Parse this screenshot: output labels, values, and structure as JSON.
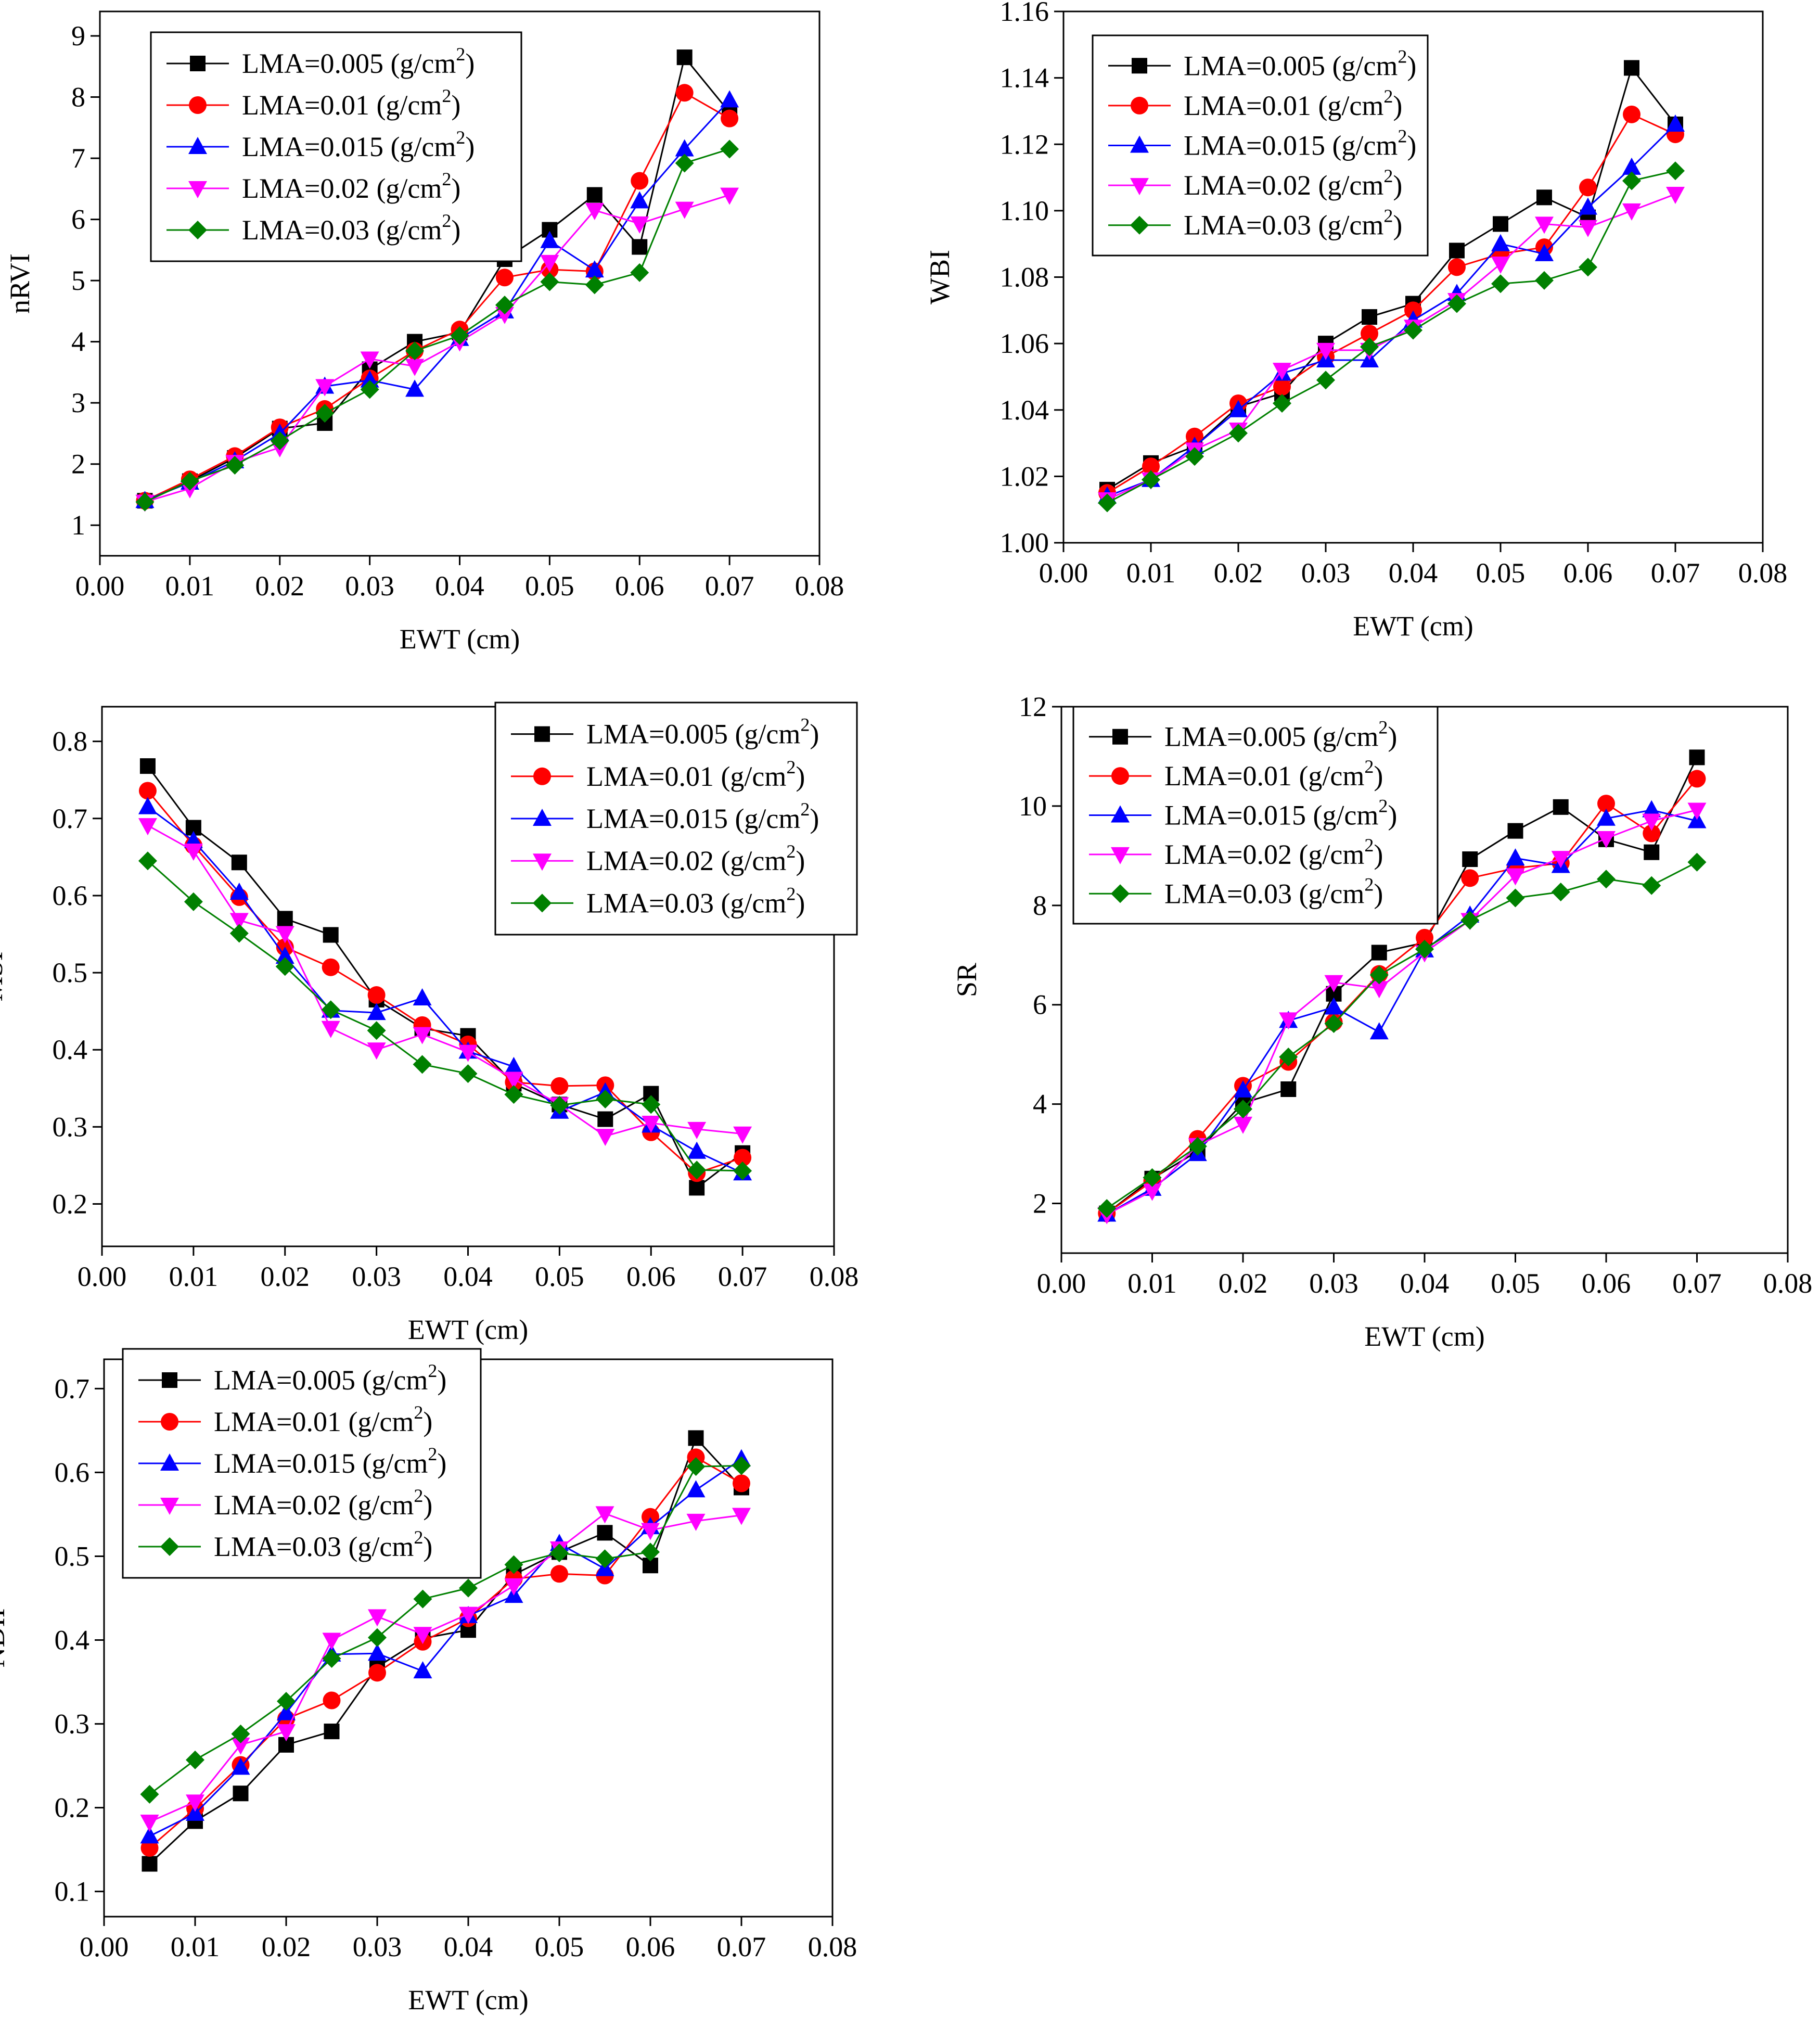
{
  "figure": {
    "legend_items": [
      {
        "prefix": "LMA=0.005 (g/cm",
        "sup": "2",
        "suffix": ")",
        "color": "#000000",
        "marker": "square"
      },
      {
        "prefix": "LMA=0.01 (g/cm",
        "sup": "2",
        "suffix": ")",
        "color": "#ff0000",
        "marker": "circle"
      },
      {
        "prefix": "LMA=0.015 (g/cm",
        "sup": "2",
        "suffix": ")",
        "color": "#0000ff",
        "marker": "triangle-up"
      },
      {
        "prefix": "LMA=0.02 (g/cm",
        "sup": "2",
        "suffix": ")",
        "color": "#ff00ff",
        "marker": "triangle-down"
      },
      {
        "prefix": "LMA=0.03 (g/cm",
        "sup": "2",
        "suffix": ")",
        "color": "#008000",
        "marker": "diamond"
      }
    ]
  },
  "chart_data": [
    {
      "id": "nrvi",
      "type": "line",
      "title": "",
      "xlabel": "EWT (cm)",
      "ylabel": "nRVI",
      "xlim": [
        0,
        0.08
      ],
      "ylim": [
        0.5,
        9.4
      ],
      "xticks": [
        "0.00",
        "0.01",
        "0.02",
        "0.03",
        "0.04",
        "0.05",
        "0.06",
        "0.07",
        "0.08"
      ],
      "xtick_values": [
        0,
        0.01,
        0.02,
        0.03,
        0.04,
        0.05,
        0.06,
        0.07,
        0.08
      ],
      "yticks": [
        "1",
        "2",
        "3",
        "4",
        "5",
        "6",
        "7",
        "8",
        "9"
      ],
      "ytick_values": [
        1,
        2,
        3,
        4,
        5,
        6,
        7,
        8,
        9
      ],
      "legend_position": "top-left",
      "x": [
        0.005,
        0.01,
        0.015,
        0.02,
        0.025,
        0.03,
        0.035,
        0.04,
        0.045,
        0.05,
        0.055,
        0.06,
        0.065,
        0.07
      ],
      "series": [
        {
          "name": "LMA=0.005 (g/cm2)",
          "values": [
            1.4,
            1.72,
            2.1,
            2.58,
            2.67,
            3.55,
            4.0,
            4.15,
            5.35,
            5.83,
            6.4,
            5.55,
            8.65,
            7.75
          ]
        },
        {
          "name": "LMA=0.01 (g/cm2)",
          "values": [
            1.4,
            1.75,
            2.13,
            2.6,
            2.9,
            3.4,
            3.85,
            4.2,
            5.05,
            5.18,
            5.15,
            6.63,
            8.07,
            7.65
          ]
        },
        {
          "name": "LMA=0.015 (g/cm2)",
          "values": [
            1.4,
            1.7,
            2.05,
            2.5,
            3.27,
            3.37,
            3.22,
            4.05,
            4.5,
            5.65,
            5.17,
            6.3,
            7.15,
            7.95
          ]
        },
        {
          "name": "LMA=0.02 (g/cm2)",
          "values": [
            1.38,
            1.6,
            2.03,
            2.27,
            3.27,
            3.72,
            3.6,
            4.0,
            4.45,
            5.3,
            6.15,
            5.93,
            6.17,
            6.4
          ]
        },
        {
          "name": "LMA=0.03 (g/cm2)",
          "values": [
            1.38,
            1.72,
            1.98,
            2.38,
            2.83,
            3.22,
            3.85,
            4.1,
            4.6,
            4.98,
            4.93,
            5.13,
            6.92,
            7.15
          ]
        }
      ]
    },
    {
      "id": "wbi",
      "type": "line",
      "title": "",
      "xlabel": "EWT (cm)",
      "ylabel": "WBI",
      "xlim": [
        0,
        0.08
      ],
      "ylim": [
        1.0,
        1.16
      ],
      "xticks": [
        "0.00",
        "0.01",
        "0.02",
        "0.03",
        "0.04",
        "0.05",
        "0.06",
        "0.07",
        "0.08"
      ],
      "xtick_values": [
        0,
        0.01,
        0.02,
        0.03,
        0.04,
        0.05,
        0.06,
        0.07,
        0.08
      ],
      "yticks": [
        "1.00",
        "1.02",
        "1.04",
        "1.06",
        "1.08",
        "1.10",
        "1.12",
        "1.14",
        "1.16"
      ],
      "ytick_values": [
        1.0,
        1.02,
        1.04,
        1.06,
        1.08,
        1.1,
        1.12,
        1.14,
        1.16
      ],
      "legend_position": "top-left",
      "x": [
        0.005,
        0.01,
        0.015,
        0.02,
        0.025,
        0.03,
        0.035,
        0.04,
        0.045,
        0.05,
        0.055,
        0.06,
        0.065,
        0.07
      ],
      "series": [
        {
          "name": "LMA=0.005 (g/cm2)",
          "values": [
            1.016,
            1.024,
            1.029,
            1.041,
            1.045,
            1.06,
            1.068,
            1.072,
            1.088,
            1.096,
            1.104,
            1.098,
            1.143,
            1.126
          ]
        },
        {
          "name": "LMA=0.01 (g/cm2)",
          "values": [
            1.015,
            1.023,
            1.032,
            1.042,
            1.047,
            1.056,
            1.063,
            1.07,
            1.083,
            1.087,
            1.089,
            1.107,
            1.129,
            1.123
          ]
        },
        {
          "name": "LMA=0.015 (g/cm2)",
          "values": [
            1.014,
            1.019,
            1.029,
            1.04,
            1.051,
            1.055,
            1.055,
            1.067,
            1.075,
            1.09,
            1.087,
            1.101,
            1.113,
            1.126
          ]
        },
        {
          "name": "LMA=0.02 (g/cm2)",
          "values": [
            1.013,
            1.019,
            1.028,
            1.034,
            1.052,
            1.058,
            1.058,
            1.065,
            1.073,
            1.084,
            1.096,
            1.095,
            1.1,
            1.105
          ]
        },
        {
          "name": "LMA=0.03 (g/cm2)",
          "values": [
            1.012,
            1.019,
            1.026,
            1.033,
            1.042,
            1.049,
            1.059,
            1.064,
            1.072,
            1.078,
            1.079,
            1.083,
            1.109,
            1.112
          ]
        }
      ]
    },
    {
      "id": "msi",
      "type": "line",
      "title": "",
      "xlabel": "EWT (cm)",
      "ylabel": "MSI",
      "xlim": [
        0,
        0.08
      ],
      "ylim": [
        0.145,
        0.845
      ],
      "xticks": [
        "0.00",
        "0.01",
        "0.02",
        "0.03",
        "0.04",
        "0.05",
        "0.06",
        "0.07",
        "0.08"
      ],
      "xtick_values": [
        0,
        0.01,
        0.02,
        0.03,
        0.04,
        0.05,
        0.06,
        0.07,
        0.08
      ],
      "yticks": [
        "0.2",
        "0.3",
        "0.4",
        "0.5",
        "0.6",
        "0.7",
        "0.8"
      ],
      "ytick_values": [
        0.2,
        0.3,
        0.4,
        0.5,
        0.6,
        0.7,
        0.8
      ],
      "legend_position": "top-right",
      "x": [
        0.005,
        0.01,
        0.015,
        0.02,
        0.025,
        0.03,
        0.035,
        0.04,
        0.045,
        0.05,
        0.055,
        0.06,
        0.065,
        0.07
      ],
      "series": [
        {
          "name": "LMA=0.005 (g/cm2)",
          "values": [
            0.768,
            0.688,
            0.643,
            0.57,
            0.549,
            0.465,
            0.428,
            0.418,
            0.356,
            0.329,
            0.31,
            0.343,
            0.221,
            0.266
          ]
        },
        {
          "name": "LMA=0.01 (g/cm2)",
          "values": [
            0.736,
            0.665,
            0.598,
            0.533,
            0.507,
            0.471,
            0.432,
            0.407,
            0.358,
            0.353,
            0.354,
            0.293,
            0.24,
            0.26
          ]
        },
        {
          "name": "LMA=0.015 (g/cm2)",
          "values": [
            0.715,
            0.671,
            0.604,
            0.521,
            0.451,
            0.448,
            0.467,
            0.398,
            0.378,
            0.32,
            0.345,
            0.302,
            0.268,
            0.24
          ]
        },
        {
          "name": "LMA=0.02 (g/cm2)",
          "values": [
            0.691,
            0.658,
            0.568,
            0.551,
            0.428,
            0.4,
            0.42,
            0.397,
            0.362,
            0.329,
            0.288,
            0.305,
            0.297,
            0.291
          ]
        },
        {
          "name": "LMA=0.03 (g/cm2)",
          "values": [
            0.645,
            0.592,
            0.551,
            0.508,
            0.452,
            0.425,
            0.381,
            0.369,
            0.342,
            0.328,
            0.336,
            0.329,
            0.244,
            0.243
          ]
        }
      ]
    },
    {
      "id": "sr",
      "type": "line",
      "title": "",
      "xlabel": "EWT (cm)",
      "ylabel": "SR",
      "xlim": [
        0,
        0.08
      ],
      "ylim": [
        1.0,
        12.0
      ],
      "xticks": [
        "0.00",
        "0.01",
        "0.02",
        "0.03",
        "0.04",
        "0.05",
        "0.06",
        "0.07",
        "0.08"
      ],
      "xtick_values": [
        0,
        0.01,
        0.02,
        0.03,
        0.04,
        0.05,
        0.06,
        0.07,
        0.08
      ],
      "yticks": [
        "2",
        "4",
        "6",
        "8",
        "10",
        "12"
      ],
      "ytick_values": [
        2,
        4,
        6,
        8,
        10,
        12
      ],
      "legend_position": "top-left",
      "x": [
        0.005,
        0.01,
        0.015,
        0.02,
        0.025,
        0.03,
        0.035,
        0.04,
        0.045,
        0.05,
        0.055,
        0.06,
        0.065,
        0.07
      ],
      "series": [
        {
          "name": "LMA=0.005 (g/cm2)",
          "values": [
            1.8,
            2.5,
            3.05,
            4.02,
            4.3,
            6.22,
            7.05,
            7.25,
            8.93,
            9.5,
            9.98,
            9.33,
            9.07,
            10.98
          ]
        },
        {
          "name": "LMA=0.01 (g/cm2)",
          "values": [
            1.8,
            2.45,
            3.3,
            4.37,
            4.85,
            5.65,
            6.62,
            7.35,
            8.55,
            8.75,
            8.85,
            10.05,
            9.45,
            10.55
          ]
        },
        {
          "name": "LMA=0.015 (g/cm2)",
          "values": [
            1.78,
            2.3,
            3.0,
            4.28,
            5.68,
            5.95,
            5.45,
            7.1,
            7.8,
            8.95,
            8.8,
            9.75,
            9.92,
            9.7
          ]
        },
        {
          "name": "LMA=0.02 (g/cm2)",
          "values": [
            1.78,
            2.25,
            3.17,
            3.6,
            5.7,
            6.45,
            6.33,
            7.05,
            7.7,
            8.6,
            8.95,
            9.35,
            9.7,
            9.92
          ]
        },
        {
          "name": "LMA=0.03 (g/cm2)",
          "values": [
            1.9,
            2.52,
            3.15,
            3.9,
            4.95,
            5.62,
            6.6,
            7.12,
            7.7,
            8.15,
            8.27,
            8.53,
            8.4,
            8.87
          ]
        }
      ]
    },
    {
      "id": "ndii",
      "type": "line",
      "title": "",
      "xlabel": "EWT (cm)",
      "ylabel": "NDII",
      "xlim": [
        0,
        0.08
      ],
      "ylim": [
        0.07,
        0.735
      ],
      "xticks": [
        "0.00",
        "0.01",
        "0.02",
        "0.03",
        "0.04",
        "0.05",
        "0.06",
        "0.07",
        "0.08"
      ],
      "xtick_values": [
        0,
        0.01,
        0.02,
        0.03,
        0.04,
        0.05,
        0.06,
        0.07,
        0.08
      ],
      "yticks": [
        "0.1",
        "0.2",
        "0.3",
        "0.4",
        "0.5",
        "0.6",
        "0.7"
      ],
      "ytick_values": [
        0.1,
        0.2,
        0.3,
        0.4,
        0.5,
        0.6,
        0.7
      ],
      "legend_position": "top-left",
      "x": [
        0.005,
        0.01,
        0.015,
        0.02,
        0.025,
        0.03,
        0.035,
        0.04,
        0.045,
        0.05,
        0.055,
        0.06,
        0.065,
        0.07
      ],
      "series": [
        {
          "name": "LMA=0.005 (g/cm2)",
          "values": [
            0.133,
            0.184,
            0.217,
            0.275,
            0.291,
            0.368,
            0.402,
            0.412,
            0.478,
            0.505,
            0.528,
            0.489,
            0.641,
            0.582
          ]
        },
        {
          "name": "LMA=0.01 (g/cm2)",
          "values": [
            0.152,
            0.199,
            0.251,
            0.306,
            0.328,
            0.361,
            0.398,
            0.426,
            0.473,
            0.479,
            0.477,
            0.547,
            0.618,
            0.587
          ]
        },
        {
          "name": "LMA=0.015 (g/cm2)",
          "values": [
            0.166,
            0.193,
            0.248,
            0.313,
            0.383,
            0.384,
            0.363,
            0.429,
            0.453,
            0.515,
            0.485,
            0.535,
            0.579,
            0.616
          ]
        },
        {
          "name": "LMA=0.02 (g/cm2)",
          "values": [
            0.183,
            0.207,
            0.275,
            0.291,
            0.4,
            0.428,
            0.407,
            0.431,
            0.465,
            0.509,
            0.551,
            0.531,
            0.542,
            0.549
          ]
        },
        {
          "name": "LMA=0.03 (g/cm2)",
          "values": [
            0.216,
            0.257,
            0.288,
            0.327,
            0.378,
            0.403,
            0.449,
            0.462,
            0.49,
            0.504,
            0.497,
            0.505,
            0.607,
            0.608
          ]
        }
      ]
    }
  ]
}
